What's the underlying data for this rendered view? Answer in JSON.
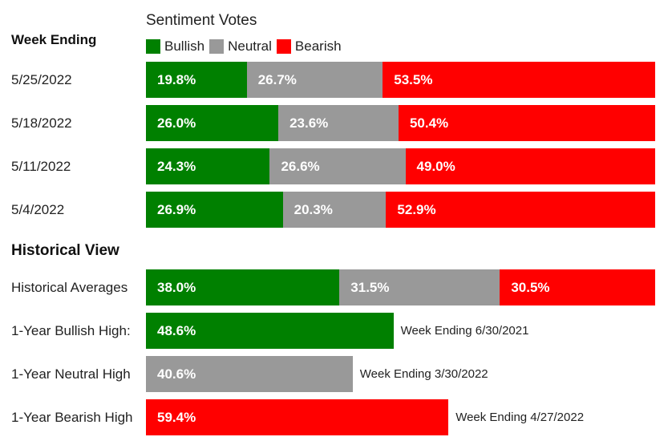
{
  "colors": {
    "bullish": "#008000",
    "neutral": "#999999",
    "bearish": "#ff0000"
  },
  "chart_data": {
    "type": "bar",
    "stacked": true,
    "orientation": "horizontal",
    "title": "Sentiment Votes",
    "week_heading": "Week Ending",
    "historical_heading": "Historical View",
    "legend": {
      "placement": "top",
      "entries": [
        "Bullish",
        "Neutral",
        "Bearish"
      ]
    },
    "categories": [
      "5/25/2022",
      "5/18/2022",
      "5/11/2022",
      "5/4/2022"
    ],
    "series": [
      {
        "name": "Bullish",
        "values": [
          19.8,
          26.0,
          24.3,
          26.9
        ],
        "labels": [
          "19.8%",
          "26.0%",
          "24.3%",
          "26.9%"
        ]
      },
      {
        "name": "Neutral",
        "values": [
          26.7,
          23.6,
          26.6,
          20.3
        ],
        "labels": [
          "26.7%",
          "23.6%",
          "26.6%",
          "20.3%"
        ]
      },
      {
        "name": "Bearish",
        "values": [
          53.5,
          50.4,
          49.0,
          52.9
        ],
        "labels": [
          "53.5%",
          "50.4%",
          "49.0%",
          "52.9%"
        ]
      }
    ],
    "historical": {
      "label": "Historical Averages",
      "values": [
        38.0,
        31.5,
        30.5
      ],
      "labels": [
        "38.0%",
        "31.5%",
        "30.5%"
      ]
    },
    "highs": [
      {
        "label": "1-Year Bullish High:",
        "sentiment": "bullish",
        "value": 48.6,
        "value_label": "48.6%",
        "note": "Week Ending 6/30/2021"
      },
      {
        "label": "1-Year Neutral High",
        "sentiment": "neutral",
        "value": 40.6,
        "value_label": "40.6%",
        "note": "Week Ending 3/30/2022"
      },
      {
        "label": "1-Year Bearish High",
        "sentiment": "bearish",
        "value": 59.4,
        "value_label": "59.4%",
        "note": "Week Ending 4/27/2022"
      }
    ]
  }
}
